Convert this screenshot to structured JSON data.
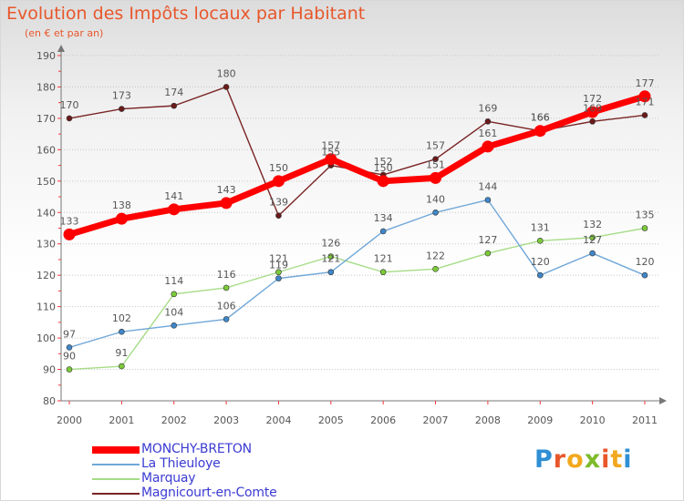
{
  "title": "Evolution des Impôts locaux par Habitant",
  "subtitle": "(en € et par an)",
  "logo": {
    "text": "Proxiti",
    "letter_colors": [
      "#2f8fd4",
      "#e8572b",
      "#f2a81d",
      "#7dbb2a",
      "#e8572b",
      "#f2a81d",
      "#2f8fd4"
    ]
  },
  "chart_data": {
    "type": "line",
    "title": "Evolution des Impôts locaux par Habitant",
    "subtitle": "(en € et par an)",
    "x": [
      "2000",
      "2001",
      "2002",
      "2003",
      "2004",
      "2005",
      "2006",
      "2007",
      "2008",
      "2009",
      "2010",
      "2011"
    ],
    "ylim": [
      80,
      190
    ],
    "yticks": [
      "80",
      "90",
      "100",
      "110",
      "120",
      "130",
      "140",
      "150",
      "160",
      "170",
      "180",
      "190"
    ],
    "grid": "horizontal",
    "legend_position": "bottom-left",
    "series": [
      {
        "name": "Magnicourt-en-Comte",
        "color": "#7a2424",
        "marker_color": "#6a1a1a",
        "width": "thin",
        "values": [
          170,
          173,
          174,
          180,
          139,
          155,
          152,
          157,
          169,
          166,
          169,
          171
        ],
        "labels": [
          "170",
          "173",
          "174",
          "180",
          "139",
          "155",
          "152",
          "157",
          "169",
          "166",
          "169",
          "171"
        ]
      },
      {
        "name": "Marquay",
        "color": "#a6dc87",
        "marker_color": "#7ccb38",
        "width": "thin",
        "values": [
          90,
          91,
          114,
          116,
          121,
          126,
          121,
          122,
          127,
          131,
          132,
          135
        ],
        "labels": [
          "90",
          "91",
          "114",
          "116",
          "121",
          "126",
          "121",
          "122",
          "127",
          "131",
          "132",
          "135"
        ]
      },
      {
        "name": "La Thieuloye",
        "color": "#70a7d8",
        "marker_color": "#3f87c9",
        "width": "thin",
        "values": [
          97,
          102,
          104,
          106,
          119,
          121,
          134,
          140,
          144,
          120,
          127,
          120
        ],
        "labels": [
          "97",
          "102",
          "104",
          "106",
          "119",
          "121",
          "134",
          "140",
          "144",
          "120",
          "127",
          "120"
        ]
      },
      {
        "name": "MONCHY-BRETON",
        "color": "#ff0000",
        "marker_color": "#ff0000",
        "width": "thick",
        "values": [
          133,
          138,
          141,
          143,
          150,
          157,
          150,
          151,
          161,
          166,
          172,
          177
        ],
        "labels": [
          "133",
          "138",
          "141",
          "143",
          "150",
          "157",
          "150",
          "151",
          "161",
          "166",
          "172",
          "177"
        ]
      }
    ],
    "legend": [
      {
        "name": "MONCHY-BRETON",
        "color": "#ff0000",
        "width": "thick"
      },
      {
        "name": "La Thieuloye",
        "color": "#70a7d8",
        "width": "thin"
      },
      {
        "name": "Marquay",
        "color": "#a6dc87",
        "width": "thin"
      },
      {
        "name": "Magnicourt-en-Comte",
        "color": "#7a2424",
        "width": "thin"
      }
    ]
  }
}
